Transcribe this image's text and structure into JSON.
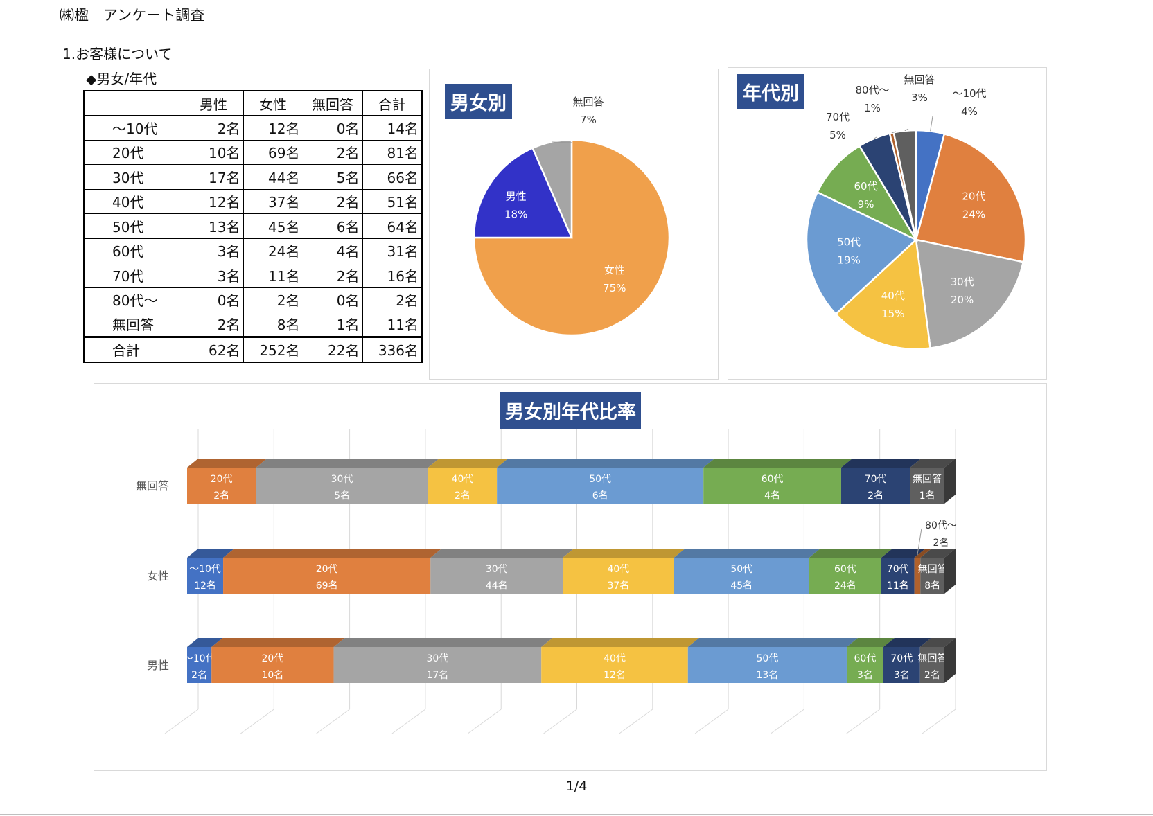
{
  "document": {
    "title": "㈱楹　アンケート調査",
    "section_title": "1.お客様について",
    "subsection_title": "◆男女/年代",
    "page_number": "1/4"
  },
  "table": {
    "headers": [
      "",
      "男性",
      "女性",
      "無回答",
      "合計"
    ],
    "rows": [
      {
        "label": "～10代",
        "values": [
          "2名",
          "12名",
          "0名",
          "14名"
        ]
      },
      {
        "label": "20代",
        "values": [
          "10名",
          "69名",
          "2名",
          "81名"
        ]
      },
      {
        "label": "30代",
        "values": [
          "17名",
          "44名",
          "5名",
          "66名"
        ]
      },
      {
        "label": "40代",
        "values": [
          "12名",
          "37名",
          "2名",
          "51名"
        ]
      },
      {
        "label": "50代",
        "values": [
          "13名",
          "45名",
          "6名",
          "64名"
        ]
      },
      {
        "label": "60代",
        "values": [
          "3名",
          "24名",
          "4名",
          "31名"
        ]
      },
      {
        "label": "70代",
        "values": [
          "3名",
          "11名",
          "2名",
          "16名"
        ]
      },
      {
        "label": "80代～",
        "values": [
          "0名",
          "2名",
          "0名",
          "2名"
        ]
      },
      {
        "label": "無回答",
        "values": [
          "2名",
          "8名",
          "1名",
          "11名"
        ]
      }
    ],
    "total": {
      "label": "合計",
      "values": [
        "62名",
        "252名",
        "22名",
        "336名"
      ]
    }
  },
  "chart_data": [
    {
      "type": "pie",
      "title": "男女別",
      "slices": [
        {
          "label": "女性",
          "value": 252,
          "percent": "75%",
          "color": "#f0a04b"
        },
        {
          "label": "男性",
          "value": 62,
          "percent": "18%",
          "color": "#3232c8"
        },
        {
          "label": "無回答",
          "value": 22,
          "percent": "7%",
          "color": "#a5a5a5"
        }
      ]
    },
    {
      "type": "pie",
      "title": "年代別",
      "slices": [
        {
          "label": "～10代",
          "value": 14,
          "percent": "4%",
          "color": "#4472c4"
        },
        {
          "label": "20代",
          "value": 81,
          "percent": "24%",
          "color": "#e0803f"
        },
        {
          "label": "30代",
          "value": 66,
          "percent": "20%",
          "color": "#a5a5a5"
        },
        {
          "label": "40代",
          "value": 51,
          "percent": "15%",
          "color": "#f5c242"
        },
        {
          "label": "50代",
          "value": 64,
          "percent": "19%",
          "color": "#6b9bd2"
        },
        {
          "label": "60代",
          "value": 31,
          "percent": "9%",
          "color": "#76ac52"
        },
        {
          "label": "70代",
          "value": 16,
          "percent": "5%",
          "color": "#2b4373"
        },
        {
          "label": "80代～",
          "value": 2,
          "percent": "1%",
          "color": "#b0612c"
        },
        {
          "label": "無回答",
          "value": 11,
          "percent": "3%",
          "color": "#5f5f5f"
        }
      ]
    },
    {
      "type": "bar",
      "orientation": "horizontal",
      "stacked": "100%",
      "title": "男女別年代比率",
      "categories": [
        "無回答",
        "女性",
        "男性"
      ],
      "unit": "名",
      "series": [
        {
          "name": "～10代",
          "color": "#4472c4",
          "values": [
            0,
            12,
            2
          ]
        },
        {
          "name": "20代",
          "color": "#e0803f",
          "values": [
            2,
            69,
            10
          ]
        },
        {
          "name": "30代",
          "color": "#a5a5a5",
          "values": [
            5,
            44,
            17
          ]
        },
        {
          "name": "40代",
          "color": "#f5c242",
          "values": [
            2,
            37,
            12
          ]
        },
        {
          "name": "50代",
          "color": "#6b9bd2",
          "values": [
            6,
            45,
            13
          ]
        },
        {
          "name": "60代",
          "color": "#76ac52",
          "values": [
            4,
            24,
            3
          ]
        },
        {
          "name": "70代",
          "color": "#2b4373",
          "values": [
            2,
            11,
            3
          ]
        },
        {
          "name": "80代～",
          "color": "#b0612c",
          "values": [
            0,
            2,
            0
          ]
        },
        {
          "name": "無回答",
          "color": "#5f5f5f",
          "values": [
            1,
            8,
            2
          ]
        }
      ],
      "gridlines": true
    }
  ]
}
